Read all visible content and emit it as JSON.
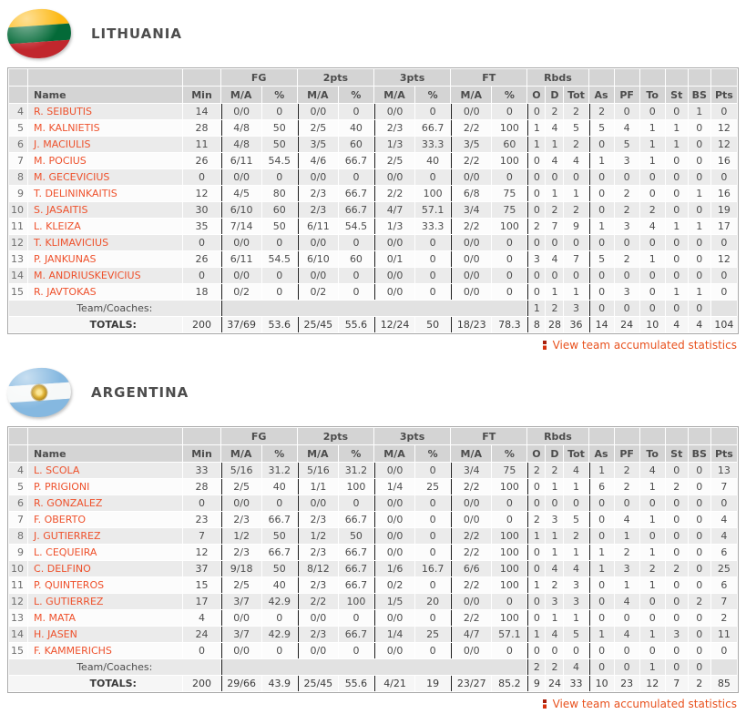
{
  "columns": {
    "name": "Name",
    "min": "Min",
    "ma": "M/A",
    "pct": "%",
    "fg": "FG",
    "p2": "2pts",
    "p3": "3pts",
    "ft": "FT",
    "rbds": "Rbds",
    "o": "O",
    "d": "D",
    "tot": "Tot",
    "as": "As",
    "pf": "PF",
    "to": "To",
    "st": "St",
    "bs": "BS",
    "pts": "Pts"
  },
  "accent_colors": {
    "player_link": "#ee512c",
    "view_link": "#e8511d",
    "header_bg": "#d4d4d4"
  },
  "teams": [
    {
      "name": "LITHUANIA",
      "flag": "lithuania-flag",
      "link_label": "View team accumulated statistics",
      "players": [
        {
          "no": "4",
          "name": "R. SEIBUTIS",
          "min": "14",
          "fg_ma": "0/0",
          "fg_pct": "0",
          "p2_ma": "0/0",
          "p2_pct": "0",
          "p3_ma": "0/0",
          "p3_pct": "0",
          "ft_ma": "0/0",
          "ft_pct": "0",
          "o": "0",
          "d": "2",
          "tot": "2",
          "as": "2",
          "pf": "0",
          "to": "0",
          "st": "0",
          "bs": "1",
          "pts": "0"
        },
        {
          "no": "5",
          "name": "M. KALNIETIS",
          "min": "28",
          "fg_ma": "4/8",
          "fg_pct": "50",
          "p2_ma": "2/5",
          "p2_pct": "40",
          "p3_ma": "2/3",
          "p3_pct": "66.7",
          "ft_ma": "2/2",
          "ft_pct": "100",
          "o": "1",
          "d": "4",
          "tot": "5",
          "as": "5",
          "pf": "4",
          "to": "1",
          "st": "1",
          "bs": "0",
          "pts": "12"
        },
        {
          "no": "6",
          "name": "J. MACIULIS",
          "min": "11",
          "fg_ma": "4/8",
          "fg_pct": "50",
          "p2_ma": "3/5",
          "p2_pct": "60",
          "p3_ma": "1/3",
          "p3_pct": "33.3",
          "ft_ma": "3/5",
          "ft_pct": "60",
          "o": "1",
          "d": "1",
          "tot": "2",
          "as": "0",
          "pf": "5",
          "to": "1",
          "st": "1",
          "bs": "0",
          "pts": "12"
        },
        {
          "no": "7",
          "name": "M. POCIUS",
          "min": "26",
          "fg_ma": "6/11",
          "fg_pct": "54.5",
          "p2_ma": "4/6",
          "p2_pct": "66.7",
          "p3_ma": "2/5",
          "p3_pct": "40",
          "ft_ma": "2/2",
          "ft_pct": "100",
          "o": "0",
          "d": "4",
          "tot": "4",
          "as": "1",
          "pf": "3",
          "to": "1",
          "st": "0",
          "bs": "0",
          "pts": "16"
        },
        {
          "no": "8",
          "name": "M. GECEVICIUS",
          "min": "0",
          "fg_ma": "0/0",
          "fg_pct": "0",
          "p2_ma": "0/0",
          "p2_pct": "0",
          "p3_ma": "0/0",
          "p3_pct": "0",
          "ft_ma": "0/0",
          "ft_pct": "0",
          "o": "0",
          "d": "0",
          "tot": "0",
          "as": "0",
          "pf": "0",
          "to": "0",
          "st": "0",
          "bs": "0",
          "pts": "0"
        },
        {
          "no": "9",
          "name": "T. DELININKAITIS",
          "min": "12",
          "fg_ma": "4/5",
          "fg_pct": "80",
          "p2_ma": "2/3",
          "p2_pct": "66.7",
          "p3_ma": "2/2",
          "p3_pct": "100",
          "ft_ma": "6/8",
          "ft_pct": "75",
          "o": "0",
          "d": "1",
          "tot": "1",
          "as": "0",
          "pf": "2",
          "to": "0",
          "st": "0",
          "bs": "1",
          "pts": "16"
        },
        {
          "no": "10",
          "name": "S. JASAITIS",
          "min": "30",
          "fg_ma": "6/10",
          "fg_pct": "60",
          "p2_ma": "2/3",
          "p2_pct": "66.7",
          "p3_ma": "4/7",
          "p3_pct": "57.1",
          "ft_ma": "3/4",
          "ft_pct": "75",
          "o": "0",
          "d": "2",
          "tot": "2",
          "as": "0",
          "pf": "2",
          "to": "2",
          "st": "0",
          "bs": "0",
          "pts": "19"
        },
        {
          "no": "11",
          "name": "L. KLEIZA",
          "min": "35",
          "fg_ma": "7/14",
          "fg_pct": "50",
          "p2_ma": "6/11",
          "p2_pct": "54.5",
          "p3_ma": "1/3",
          "p3_pct": "33.3",
          "ft_ma": "2/2",
          "ft_pct": "100",
          "o": "2",
          "d": "7",
          "tot": "9",
          "as": "1",
          "pf": "3",
          "to": "4",
          "st": "1",
          "bs": "1",
          "pts": "17"
        },
        {
          "no": "12",
          "name": "T. KLIMAVICIUS",
          "min": "0",
          "fg_ma": "0/0",
          "fg_pct": "0",
          "p2_ma": "0/0",
          "p2_pct": "0",
          "p3_ma": "0/0",
          "p3_pct": "0",
          "ft_ma": "0/0",
          "ft_pct": "0",
          "o": "0",
          "d": "0",
          "tot": "0",
          "as": "0",
          "pf": "0",
          "to": "0",
          "st": "0",
          "bs": "0",
          "pts": "0"
        },
        {
          "no": "13",
          "name": "P. JANKUNAS",
          "min": "26",
          "fg_ma": "6/11",
          "fg_pct": "54.5",
          "p2_ma": "6/10",
          "p2_pct": "60",
          "p3_ma": "0/1",
          "p3_pct": "0",
          "ft_ma": "0/0",
          "ft_pct": "0",
          "o": "3",
          "d": "4",
          "tot": "7",
          "as": "5",
          "pf": "2",
          "to": "1",
          "st": "0",
          "bs": "0",
          "pts": "12"
        },
        {
          "no": "14",
          "name": "M. ANDRIUSKEVICIUS",
          "min": "0",
          "fg_ma": "0/0",
          "fg_pct": "0",
          "p2_ma": "0/0",
          "p2_pct": "0",
          "p3_ma": "0/0",
          "p3_pct": "0",
          "ft_ma": "0/0",
          "ft_pct": "0",
          "o": "0",
          "d": "0",
          "tot": "0",
          "as": "0",
          "pf": "0",
          "to": "0",
          "st": "0",
          "bs": "0",
          "pts": "0"
        },
        {
          "no": "15",
          "name": "R. JAVTOKAS",
          "min": "18",
          "fg_ma": "0/2",
          "fg_pct": "0",
          "p2_ma": "0/2",
          "p2_pct": "0",
          "p3_ma": "0/0",
          "p3_pct": "0",
          "ft_ma": "0/0",
          "ft_pct": "0",
          "o": "0",
          "d": "1",
          "tot": "1",
          "as": "0",
          "pf": "3",
          "to": "0",
          "st": "1",
          "bs": "1",
          "pts": "0"
        }
      ],
      "team_coaches": {
        "label": "Team/Coaches:",
        "o": "1",
        "d": "2",
        "tot": "3",
        "as": "0",
        "pf": "0",
        "to": "0",
        "st": "0",
        "bs": "0"
      },
      "totals": {
        "label": "TOTALS:",
        "min": "200",
        "fg_ma": "37/69",
        "fg_pct": "53.6",
        "p2_ma": "25/45",
        "p2_pct": "55.6",
        "p3_ma": "12/24",
        "p3_pct": "50",
        "ft_ma": "18/23",
        "ft_pct": "78.3",
        "o": "8",
        "d": "28",
        "tot": "36",
        "as": "14",
        "pf": "24",
        "to": "10",
        "st": "4",
        "bs": "4",
        "pts": "104"
      }
    },
    {
      "name": "ARGENTINA",
      "flag": "argentina-flag",
      "link_label": "View team accumulated statistics",
      "players": [
        {
          "no": "4",
          "name": "L. SCOLA",
          "min": "33",
          "fg_ma": "5/16",
          "fg_pct": "31.2",
          "p2_ma": "5/16",
          "p2_pct": "31.2",
          "p3_ma": "0/0",
          "p3_pct": "0",
          "ft_ma": "3/4",
          "ft_pct": "75",
          "o": "2",
          "d": "2",
          "tot": "4",
          "as": "1",
          "pf": "2",
          "to": "4",
          "st": "0",
          "bs": "0",
          "pts": "13"
        },
        {
          "no": "5",
          "name": "P. PRIGIONI",
          "min": "28",
          "fg_ma": "2/5",
          "fg_pct": "40",
          "p2_ma": "1/1",
          "p2_pct": "100",
          "p3_ma": "1/4",
          "p3_pct": "25",
          "ft_ma": "2/2",
          "ft_pct": "100",
          "o": "0",
          "d": "1",
          "tot": "1",
          "as": "6",
          "pf": "2",
          "to": "1",
          "st": "2",
          "bs": "0",
          "pts": "7"
        },
        {
          "no": "6",
          "name": "R. GONZALEZ",
          "min": "0",
          "fg_ma": "0/0",
          "fg_pct": "0",
          "p2_ma": "0/0",
          "p2_pct": "0",
          "p3_ma": "0/0",
          "p3_pct": "0",
          "ft_ma": "0/0",
          "ft_pct": "0",
          "o": "0",
          "d": "0",
          "tot": "0",
          "as": "0",
          "pf": "0",
          "to": "0",
          "st": "0",
          "bs": "0",
          "pts": "0"
        },
        {
          "no": "7",
          "name": "F. OBERTO",
          "min": "23",
          "fg_ma": "2/3",
          "fg_pct": "66.7",
          "p2_ma": "2/3",
          "p2_pct": "66.7",
          "p3_ma": "0/0",
          "p3_pct": "0",
          "ft_ma": "0/0",
          "ft_pct": "0",
          "o": "2",
          "d": "3",
          "tot": "5",
          "as": "0",
          "pf": "4",
          "to": "1",
          "st": "0",
          "bs": "0",
          "pts": "4"
        },
        {
          "no": "8",
          "name": "J. GUTIERREZ",
          "min": "7",
          "fg_ma": "1/2",
          "fg_pct": "50",
          "p2_ma": "1/2",
          "p2_pct": "50",
          "p3_ma": "0/0",
          "p3_pct": "0",
          "ft_ma": "2/2",
          "ft_pct": "100",
          "o": "1",
          "d": "1",
          "tot": "2",
          "as": "0",
          "pf": "1",
          "to": "0",
          "st": "0",
          "bs": "0",
          "pts": "4"
        },
        {
          "no": "9",
          "name": "L. CEQUEIRA",
          "min": "12",
          "fg_ma": "2/3",
          "fg_pct": "66.7",
          "p2_ma": "2/3",
          "p2_pct": "66.7",
          "p3_ma": "0/0",
          "p3_pct": "0",
          "ft_ma": "2/2",
          "ft_pct": "100",
          "o": "0",
          "d": "1",
          "tot": "1",
          "as": "1",
          "pf": "2",
          "to": "1",
          "st": "0",
          "bs": "0",
          "pts": "6"
        },
        {
          "no": "10",
          "name": "C. DELFINO",
          "min": "37",
          "fg_ma": "9/18",
          "fg_pct": "50",
          "p2_ma": "8/12",
          "p2_pct": "66.7",
          "p3_ma": "1/6",
          "p3_pct": "16.7",
          "ft_ma": "6/6",
          "ft_pct": "100",
          "o": "0",
          "d": "4",
          "tot": "4",
          "as": "1",
          "pf": "3",
          "to": "2",
          "st": "2",
          "bs": "0",
          "pts": "25"
        },
        {
          "no": "11",
          "name": "P. QUINTEROS",
          "min": "15",
          "fg_ma": "2/5",
          "fg_pct": "40",
          "p2_ma": "2/3",
          "p2_pct": "66.7",
          "p3_ma": "0/2",
          "p3_pct": "0",
          "ft_ma": "2/2",
          "ft_pct": "100",
          "o": "1",
          "d": "2",
          "tot": "3",
          "as": "0",
          "pf": "1",
          "to": "1",
          "st": "0",
          "bs": "0",
          "pts": "6"
        },
        {
          "no": "12",
          "name": "L. GUTIERREZ",
          "min": "17",
          "fg_ma": "3/7",
          "fg_pct": "42.9",
          "p2_ma": "2/2",
          "p2_pct": "100",
          "p3_ma": "1/5",
          "p3_pct": "20",
          "ft_ma": "0/0",
          "ft_pct": "0",
          "o": "0",
          "d": "3",
          "tot": "3",
          "as": "0",
          "pf": "4",
          "to": "0",
          "st": "0",
          "bs": "2",
          "pts": "7"
        },
        {
          "no": "13",
          "name": "M. MATA",
          "min": "4",
          "fg_ma": "0/0",
          "fg_pct": "0",
          "p2_ma": "0/0",
          "p2_pct": "0",
          "p3_ma": "0/0",
          "p3_pct": "0",
          "ft_ma": "2/2",
          "ft_pct": "100",
          "o": "0",
          "d": "1",
          "tot": "1",
          "as": "0",
          "pf": "0",
          "to": "0",
          "st": "0",
          "bs": "0",
          "pts": "2"
        },
        {
          "no": "14",
          "name": "H. JASEN",
          "min": "24",
          "fg_ma": "3/7",
          "fg_pct": "42.9",
          "p2_ma": "2/3",
          "p2_pct": "66.7",
          "p3_ma": "1/4",
          "p3_pct": "25",
          "ft_ma": "4/7",
          "ft_pct": "57.1",
          "o": "1",
          "d": "4",
          "tot": "5",
          "as": "1",
          "pf": "4",
          "to": "1",
          "st": "3",
          "bs": "0",
          "pts": "11"
        },
        {
          "no": "15",
          "name": "F. KAMMERICHS",
          "min": "0",
          "fg_ma": "0/0",
          "fg_pct": "0",
          "p2_ma": "0/0",
          "p2_pct": "0",
          "p3_ma": "0/0",
          "p3_pct": "0",
          "ft_ma": "0/0",
          "ft_pct": "0",
          "o": "0",
          "d": "0",
          "tot": "0",
          "as": "0",
          "pf": "0",
          "to": "0",
          "st": "0",
          "bs": "0",
          "pts": "0"
        }
      ],
      "team_coaches": {
        "label": "Team/Coaches:",
        "o": "2",
        "d": "2",
        "tot": "4",
        "as": "0",
        "pf": "0",
        "to": "1",
        "st": "0",
        "bs": "0"
      },
      "totals": {
        "label": "TOTALS:",
        "min": "200",
        "fg_ma": "29/66",
        "fg_pct": "43.9",
        "p2_ma": "25/45",
        "p2_pct": "55.6",
        "p3_ma": "4/21",
        "p3_pct": "19",
        "ft_ma": "23/27",
        "ft_pct": "85.2",
        "o": "9",
        "d": "24",
        "tot": "33",
        "as": "10",
        "pf": "23",
        "to": "12",
        "st": "7",
        "bs": "2",
        "pts": "85"
      }
    }
  ]
}
